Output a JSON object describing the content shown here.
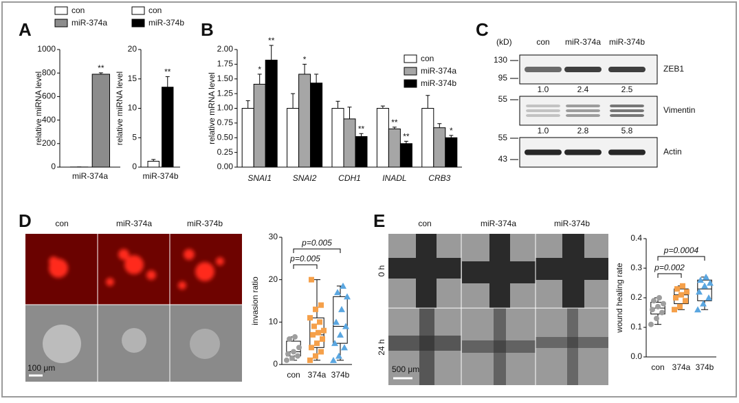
{
  "panel_labels": [
    "A",
    "B",
    "C",
    "D",
    "E"
  ],
  "chart_data": [
    {
      "type": "bar",
      "ylabel": "relative miRNA level",
      "categories": [
        "miR-374a"
      ],
      "series": [
        {
          "name": "con",
          "color": "#ffffff",
          "values": [
            1
          ],
          "errors": [
            0.3
          ]
        },
        {
          "name": "miR-374a",
          "color": "#8c8c8c",
          "values": [
            790
          ],
          "errors": [
            12
          ],
          "labels": [
            "**"
          ]
        }
      ],
      "ylim": [
        0,
        1000
      ],
      "yticks": [
        0,
        200,
        400,
        600,
        800,
        1000
      ]
    },
    {
      "type": "bar",
      "ylabel": "relative miRNA level",
      "categories": [
        "miR-374b"
      ],
      "series": [
        {
          "name": "con",
          "color": "#ffffff",
          "values": [
            1
          ],
          "errors": [
            0.3
          ]
        },
        {
          "name": "miR-374b",
          "color": "#000000",
          "values": [
            13.6
          ],
          "errors": [
            1.8
          ],
          "labels": [
            "**"
          ]
        }
      ],
      "ylim": [
        0,
        20
      ],
      "yticks": [
        0,
        5,
        10,
        15,
        20
      ]
    },
    {
      "type": "bar",
      "ylabel": "relative mRNA level",
      "categories": [
        "SNAI1",
        "SNAI2",
        "CDH1",
        "INADL",
        "CRB3"
      ],
      "series": [
        {
          "name": "con",
          "color": "#ffffff",
          "values": [
            1,
            1,
            1,
            1,
            1
          ],
          "errors": [
            0.13,
            0.25,
            0.12,
            0.04,
            0.22
          ]
        },
        {
          "name": "miR-374a",
          "color": "#a6a6a6",
          "values": [
            1.41,
            1.58,
            0.82,
            0.65,
            0.67
          ],
          "errors": [
            0.17,
            0.17,
            0.2,
            0.03,
            0.07
          ],
          "labels": [
            "*",
            "*",
            null,
            "**",
            null
          ]
        },
        {
          "name": "miR-374b",
          "color": "#000000",
          "values": [
            1.82,
            1.43,
            0.52,
            0.4,
            0.5
          ],
          "errors": [
            0.25,
            0.15,
            0.05,
            0.04,
            0.04
          ],
          "labels": [
            "**",
            null,
            "**",
            "**",
            "*"
          ]
        }
      ],
      "ylim": [
        0,
        2
      ],
      "yticks": [
        {
          "value": 0,
          "label": "0.00"
        },
        0.25,
        {
          "value": 0.5,
          "label": "0.50"
        },
        0.75,
        {
          "value": 1,
          "label": "1.00"
        },
        1.25,
        {
          "value": 1.5,
          "label": "1.50"
        },
        1.75,
        {
          "value": 2,
          "label": "2.00"
        }
      ]
    },
    {
      "type": "box",
      "ylabel": "invasion ratio",
      "categories": [
        "con",
        "374a",
        "374b"
      ],
      "boxes": [
        {
          "color": "#9e9e9e",
          "marker": "circle",
          "min": 1,
          "q1": 2,
          "median": 3,
          "q3": 5.5,
          "max": 6.5,
          "points": [
            1,
            1.5,
            2,
            2.5,
            3,
            4,
            6,
            6.5
          ]
        },
        {
          "color": "#f5a04a",
          "marker": "square",
          "min": 1,
          "q1": 4,
          "median": 7,
          "q3": 11,
          "max": 20,
          "points": [
            1,
            2,
            3,
            4,
            5,
            6,
            7,
            7.5,
            8,
            9,
            10,
            11,
            13,
            14,
            20
          ]
        },
        {
          "color": "#5aa6e0",
          "marker": "triangle",
          "min": 1,
          "q1": 5,
          "median": 9,
          "q3": 16,
          "max": 18.5,
          "points": [
            1,
            2,
            4,
            5,
            7,
            9,
            10,
            13,
            16,
            17,
            18.5
          ]
        }
      ],
      "annotations": [
        "p=0.005",
        "p=0.005"
      ],
      "ylim": [
        0,
        30
      ],
      "yticks": [
        0,
        10,
        20,
        30
      ]
    },
    {
      "type": "box",
      "ylabel": "wound healing rate",
      "categories": [
        "con",
        "374a",
        "374b"
      ],
      "boxes": [
        {
          "color": "#9e9e9e",
          "marker": "circle",
          "min": 0.11,
          "q1": 0.145,
          "median": 0.165,
          "q3": 0.185,
          "max": 0.2,
          "points": [
            0.11,
            0.13,
            0.15,
            0.16,
            0.17,
            0.18,
            0.19,
            0.2
          ]
        },
        {
          "color": "#f5a04a",
          "marker": "square",
          "min": 0.16,
          "q1": 0.18,
          "median": 0.21,
          "q3": 0.23,
          "max": 0.24,
          "points": [
            0.16,
            0.17,
            0.19,
            0.2,
            0.21,
            0.22,
            0.23,
            0.24
          ]
        },
        {
          "color": "#5aa6e0",
          "marker": "triangle",
          "min": 0.16,
          "q1": 0.19,
          "median": 0.23,
          "q3": 0.26,
          "max": 0.27,
          "points": [
            0.16,
            0.18,
            0.2,
            0.22,
            0.24,
            0.25,
            0.26,
            0.27
          ]
        }
      ],
      "annotations": [
        "p=0.002",
        "p=0.0004"
      ],
      "ylim": [
        0,
        0.4
      ],
      "yticks": [
        {
          "value": 0,
          "label": "0.0"
        },
        0.1,
        0.2,
        0.3,
        0.4
      ]
    }
  ],
  "blot": {
    "unit": "(kD)",
    "lanes": [
      "con",
      "miR-374a",
      "miR-374b"
    ],
    "markers": [
      "130",
      "95",
      "55",
      "55",
      "43"
    ],
    "rows": [
      {
        "name": "ZEB1",
        "quant": [
          "1.0",
          "2.4",
          "2.5"
        ]
      },
      {
        "name": "Vimentin",
        "quant": [
          "1.0",
          "2.8",
          "5.8"
        ]
      },
      {
        "name": "Actin"
      }
    ]
  },
  "invasion_images": {
    "columns": [
      "con",
      "miR-374a",
      "miR-374b"
    ],
    "scale_bar": "100 μm"
  },
  "wound_images": {
    "columns": [
      "con",
      "miR-374a",
      "miR-374b"
    ],
    "rows": [
      "0 h",
      "24 h"
    ],
    "scale_bar": "500 μm"
  }
}
